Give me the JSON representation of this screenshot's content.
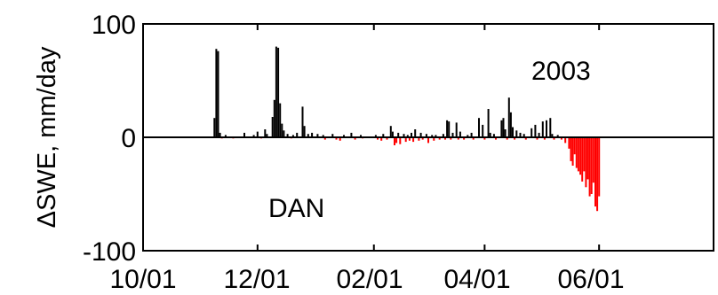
{
  "chart_data": {
    "type": "bar",
    "ylabel": "ΔSWE, mm/day",
    "ylim": [
      -100,
      100
    ],
    "yticks": [
      {
        "value": 100,
        "label": "100"
      },
      {
        "value": 0,
        "label": "0"
      },
      {
        "value": -100,
        "label": "-100"
      }
    ],
    "xlim": [
      "2002-10-01",
      "2003-08-01"
    ],
    "xticks": [
      {
        "date": "2002-10-01",
        "label": "10/01"
      },
      {
        "date": "2002-12-01",
        "label": "12/01"
      },
      {
        "date": "2003-02-01",
        "label": "02/01"
      },
      {
        "date": "2003-04-01",
        "label": "04/01"
      },
      {
        "date": "2003-06-01",
        "label": "06/01"
      }
    ],
    "annotations": [
      {
        "id": "year",
        "text": "2003"
      },
      {
        "id": "site",
        "text": "DAN"
      }
    ],
    "colors": {
      "accumulation": "#000000",
      "melt": "#ff0000",
      "zero_line": "#000000"
    },
    "series": [
      {
        "color": "#000000",
        "points": [
          [
            "2002-11-08",
            17
          ],
          [
            "2002-11-09",
            78
          ],
          [
            "2002-11-10",
            76
          ],
          [
            "2002-11-11",
            4
          ],
          [
            "2002-11-14",
            2
          ],
          [
            "2002-11-24",
            4
          ],
          [
            "2002-11-29",
            2
          ],
          [
            "2002-12-01",
            5
          ],
          [
            "2002-12-05",
            7
          ],
          [
            "2002-12-06",
            3
          ],
          [
            "2002-12-09",
            18
          ],
          [
            "2002-12-10",
            33
          ],
          [
            "2002-12-11",
            80
          ],
          [
            "2002-12-12",
            79
          ],
          [
            "2002-12-13",
            30
          ],
          [
            "2002-12-14",
            12
          ],
          [
            "2002-12-15",
            6
          ],
          [
            "2002-12-17",
            3
          ],
          [
            "2002-12-20",
            2
          ],
          [
            "2002-12-22",
            4
          ],
          [
            "2002-12-25",
            27
          ],
          [
            "2002-12-26",
            10
          ],
          [
            "2002-12-28",
            3
          ],
          [
            "2002-12-30",
            4
          ],
          [
            "2003-01-02",
            3
          ],
          [
            "2003-01-05",
            2
          ],
          [
            "2003-01-10",
            3
          ],
          [
            "2003-01-16",
            2
          ],
          [
            "2003-01-20",
            4
          ],
          [
            "2003-01-25",
            2
          ],
          [
            "2003-02-02",
            2
          ],
          [
            "2003-02-06",
            3
          ],
          [
            "2003-02-10",
            10
          ],
          [
            "2003-02-11",
            5
          ],
          [
            "2003-02-14",
            4
          ],
          [
            "2003-02-17",
            3
          ],
          [
            "2003-02-19",
            2
          ],
          [
            "2003-02-21",
            4
          ],
          [
            "2003-02-23",
            7
          ],
          [
            "2003-02-26",
            4
          ],
          [
            "2003-03-01",
            3
          ],
          [
            "2003-03-04",
            2
          ],
          [
            "2003-03-06",
            2
          ],
          [
            "2003-03-10",
            3
          ],
          [
            "2003-03-12",
            15
          ],
          [
            "2003-03-13",
            14
          ],
          [
            "2003-03-15",
            4
          ],
          [
            "2003-03-17",
            13
          ],
          [
            "2003-03-19",
            5
          ],
          [
            "2003-03-23",
            2
          ],
          [
            "2003-03-25",
            4
          ],
          [
            "2003-03-29",
            17
          ],
          [
            "2003-03-31",
            11
          ],
          [
            "2003-04-03",
            25
          ],
          [
            "2003-04-04",
            4
          ],
          [
            "2003-04-06",
            3
          ],
          [
            "2003-04-10",
            15
          ],
          [
            "2003-04-11",
            17
          ],
          [
            "2003-04-12",
            7
          ],
          [
            "2003-04-14",
            35
          ],
          [
            "2003-04-15",
            22
          ],
          [
            "2003-04-16",
            9
          ],
          [
            "2003-04-18",
            6
          ],
          [
            "2003-04-20",
            4
          ],
          [
            "2003-04-22",
            3
          ],
          [
            "2003-04-26",
            8
          ],
          [
            "2003-04-28",
            11
          ],
          [
            "2003-04-30",
            4
          ],
          [
            "2003-05-02",
            14
          ],
          [
            "2003-05-04",
            15
          ],
          [
            "2003-05-06",
            17
          ],
          [
            "2003-05-07",
            3
          ],
          [
            "2003-05-10",
            2
          ]
        ]
      },
      {
        "color": "#ff0000",
        "points": [
          [
            "2002-11-12",
            -1
          ],
          [
            "2002-11-18",
            -1
          ],
          [
            "2002-12-03",
            -1
          ],
          [
            "2002-12-19",
            -1
          ],
          [
            "2003-01-06",
            -2
          ],
          [
            "2003-01-12",
            -2
          ],
          [
            "2003-01-14",
            -3
          ],
          [
            "2003-01-22",
            -2
          ],
          [
            "2003-01-26",
            -1
          ],
          [
            "2003-02-03",
            -2
          ],
          [
            "2003-02-05",
            -3
          ],
          [
            "2003-02-08",
            -2
          ],
          [
            "2003-02-12",
            -7
          ],
          [
            "2003-02-13",
            -5
          ],
          [
            "2003-02-15",
            -6
          ],
          [
            "2003-02-18",
            -4
          ],
          [
            "2003-02-20",
            -3
          ],
          [
            "2003-02-22",
            -4
          ],
          [
            "2003-02-25",
            -3
          ],
          [
            "2003-02-27",
            -2
          ],
          [
            "2003-03-02",
            -5
          ],
          [
            "2003-03-05",
            -3
          ],
          [
            "2003-03-08",
            -2
          ],
          [
            "2003-03-11",
            -2
          ],
          [
            "2003-03-14",
            -2
          ],
          [
            "2003-03-18",
            -2
          ],
          [
            "2003-03-21",
            -2
          ],
          [
            "2003-03-26",
            -2
          ],
          [
            "2003-04-01",
            -2
          ],
          [
            "2003-04-07",
            -2
          ],
          [
            "2003-04-13",
            -2
          ],
          [
            "2003-04-17",
            -2
          ],
          [
            "2003-04-23",
            -2
          ],
          [
            "2003-04-29",
            -2
          ],
          [
            "2003-05-03",
            -2
          ],
          [
            "2003-05-08",
            -2
          ],
          [
            "2003-05-12",
            -2
          ],
          [
            "2003-05-14",
            -5
          ],
          [
            "2003-05-16",
            -10
          ],
          [
            "2003-05-17",
            -21
          ],
          [
            "2003-05-18",
            -25
          ],
          [
            "2003-05-19",
            -15
          ],
          [
            "2003-05-20",
            -27
          ],
          [
            "2003-05-21",
            -30
          ],
          [
            "2003-05-22",
            -33
          ],
          [
            "2003-05-23",
            -39
          ],
          [
            "2003-05-24",
            -30
          ],
          [
            "2003-05-25",
            -44
          ],
          [
            "2003-05-26",
            -37
          ],
          [
            "2003-05-27",
            -52
          ],
          [
            "2003-05-28",
            -50
          ],
          [
            "2003-05-29",
            -40
          ],
          [
            "2003-05-30",
            -61
          ],
          [
            "2003-05-31",
            -65
          ],
          [
            "2003-06-01",
            -52
          ]
        ]
      }
    ]
  }
}
